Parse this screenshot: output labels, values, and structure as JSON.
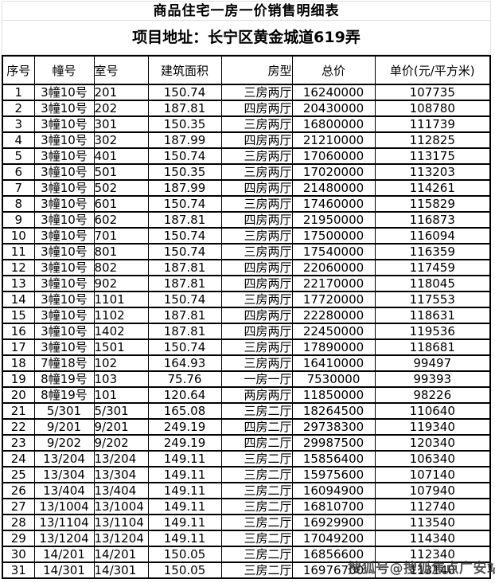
{
  "title": "商品住宅一房一价销售明细表",
  "address": "项目地址：长宁区黄金城道619弄",
  "watermark": "搜狐号@搜狐焦点广安站",
  "colors": {
    "table_border": "#000000",
    "title_border": "#e0e0e0",
    "watermark_text": "#2d2d2d",
    "background": "#ffffff"
  },
  "table": {
    "columns": [
      "序号",
      "幢号",
      "室号",
      "建筑面积",
      "房型",
      "总价",
      "单价(元/平方米)"
    ],
    "rows": [
      [
        "1",
        "3幢10号",
        "201",
        "150.74",
        "三房两厅",
        "16240000",
        "107735"
      ],
      [
        "2",
        "3幢10号",
        "202",
        "187.81",
        "四房两厅",
        "20430000",
        "108780"
      ],
      [
        "3",
        "3幢10号",
        "301",
        "150.35",
        "三房两厅",
        "16800000",
        "111739"
      ],
      [
        "4",
        "3幢10号",
        "302",
        "187.99",
        "四房两厅",
        "21210000",
        "112825"
      ],
      [
        "5",
        "3幢10号",
        "401",
        "150.74",
        "三房两厅",
        "17060000",
        "113175"
      ],
      [
        "6",
        "3幢10号",
        "501",
        "150.35",
        "三房两厅",
        "17020000",
        "113203"
      ],
      [
        "7",
        "3幢10号",
        "502",
        "187.99",
        "四房两厅",
        "21480000",
        "114261"
      ],
      [
        "8",
        "3幢10号",
        "601",
        "150.74",
        "三房两厅",
        "17460000",
        "115829"
      ],
      [
        "9",
        "3幢10号",
        "602",
        "187.81",
        "四房两厅",
        "21950000",
        "116873"
      ],
      [
        "10",
        "3幢10号",
        "701",
        "150.74",
        "三房两厅",
        "17500000",
        "116094"
      ],
      [
        "11",
        "3幢10号",
        "801",
        "150.74",
        "三房两厅",
        "17540000",
        "116359"
      ],
      [
        "12",
        "3幢10号",
        "802",
        "187.81",
        "四房两厅",
        "22060000",
        "117459"
      ],
      [
        "13",
        "3幢10号",
        "902",
        "187.81",
        "四房两厅",
        "22170000",
        "118045"
      ],
      [
        "14",
        "3幢10号",
        "1101",
        "150.74",
        "三房两厅",
        "17720000",
        "117553"
      ],
      [
        "15",
        "3幢10号",
        "1102",
        "187.81",
        "四房两厅",
        "22280000",
        "118631"
      ],
      [
        "16",
        "3幢10号",
        "1402",
        "187.81",
        "四房两厅",
        "22450000",
        "119536"
      ],
      [
        "17",
        "3幢10号",
        "1501",
        "150.74",
        "三房两厅",
        "17890000",
        "118681"
      ],
      [
        "18",
        "7幢18号",
        "102",
        "164.93",
        "三房两厅",
        "16410000",
        "99497"
      ],
      [
        "19",
        "8幢19号",
        "103",
        "75.76",
        "一房一厅",
        "7530000",
        "99393"
      ],
      [
        "20",
        "8幢19号",
        "101",
        "120.64",
        "两房两厅",
        "11850000",
        "98226"
      ],
      [
        "21",
        "5/301",
        "5/301",
        "165.08",
        "三房二厅",
        "18264500",
        "110640"
      ],
      [
        "22",
        "9/201",
        "9/201",
        "249.19",
        "四房二厅",
        "29738300",
        "119340"
      ],
      [
        "23",
        "9/202",
        "9/202",
        "249.19",
        "四房二厅",
        "29987500",
        "120340"
      ],
      [
        "24",
        "13/204",
        "13/204",
        "149.11",
        "三房二厅",
        "15856400",
        "106340"
      ],
      [
        "25",
        "13/304",
        "13/304",
        "149.11",
        "三房二厅",
        "15975600",
        "107140"
      ],
      [
        "26",
        "13/404",
        "13/404",
        "149.11",
        "三房二厅",
        "16094900",
        "107940"
      ],
      [
        "27",
        "13/1004",
        "13/1004",
        "149.11",
        "三房二厅",
        "16810700",
        "112740"
      ],
      [
        "28",
        "13/1104",
        "13/1104",
        "149.11",
        "三房二厅",
        "16929900",
        "113540"
      ],
      [
        "29",
        "13/1204",
        "13/1204",
        "149.11",
        "三房二厅",
        "17049200",
        "114340"
      ],
      [
        "30",
        "14/201",
        "14/201",
        "150.05",
        "三房二厅",
        "16856600",
        "112340"
      ],
      [
        "31",
        "14/301",
        "14/301",
        "150.05",
        "三房二厅",
        "16976700",
        "113140"
      ]
    ]
  }
}
